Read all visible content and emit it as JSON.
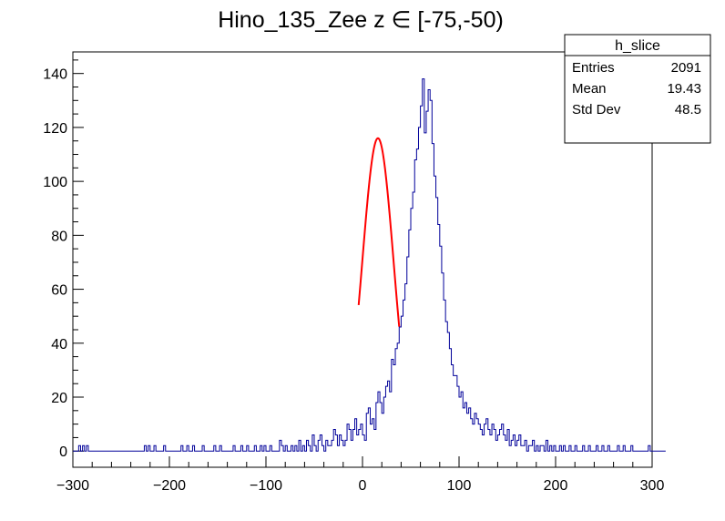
{
  "chart_data": {
    "type": "histogram",
    "title": "Hino_135_Zee z  ∈ [-75,-50)",
    "xlabel": "",
    "ylabel": "",
    "xlim": [
      -300,
      300
    ],
    "ylim": [
      -6,
      148
    ],
    "x_ticks": [
      -300,
      -200,
      -100,
      0,
      100,
      200,
      300
    ],
    "y_ticks": [
      0,
      20,
      40,
      60,
      80,
      100,
      120,
      140
    ],
    "grid": false,
    "histogram": {
      "name": "h_slice",
      "color": "#000099",
      "bin_width": 2,
      "x_start": -300,
      "counts": [
        0,
        0,
        0,
        2,
        0,
        2,
        0,
        2,
        0,
        0,
        0,
        0,
        0,
        0,
        0,
        0,
        0,
        0,
        0,
        0,
        0,
        0,
        0,
        0,
        0,
        0,
        0,
        0,
        0,
        0,
        0,
        0,
        0,
        0,
        0,
        0,
        0,
        2,
        0,
        2,
        0,
        0,
        2,
        0,
        0,
        0,
        0,
        2,
        0,
        0,
        0,
        0,
        0,
        0,
        0,
        0,
        2,
        0,
        0,
        2,
        0,
        0,
        2,
        0,
        0,
        0,
        0,
        2,
        0,
        0,
        0,
        0,
        0,
        2,
        0,
        0,
        2,
        0,
        0,
        0,
        0,
        0,
        0,
        2,
        0,
        0,
        0,
        2,
        0,
        0,
        2,
        0,
        0,
        0,
        2,
        0,
        0,
        2,
        0,
        2,
        0,
        0,
        2,
        0,
        0,
        0,
        0,
        4,
        2,
        0,
        2,
        0,
        0,
        2,
        0,
        2,
        0,
        4,
        0,
        2,
        0,
        4,
        2,
        0,
        6,
        2,
        0,
        4,
        6,
        2,
        0,
        4,
        2,
        2,
        4,
        8,
        6,
        2,
        6,
        4,
        2,
        4,
        10,
        8,
        4,
        8,
        12,
        6,
        8,
        10,
        6,
        4,
        14,
        16,
        10,
        12,
        8,
        18,
        22,
        18,
        14,
        20,
        24,
        26,
        22,
        34,
        32,
        38,
        40,
        46,
        50,
        56,
        62,
        72,
        82,
        90,
        96,
        108,
        112,
        120,
        128,
        138,
        118,
        126,
        134,
        130,
        114,
        102,
        94,
        84,
        76,
        66,
        56,
        48,
        44,
        38,
        32,
        28,
        28,
        24,
        20,
        22,
        16,
        18,
        14,
        16,
        12,
        10,
        14,
        12,
        10,
        8,
        6,
        10,
        12,
        8,
        6,
        10,
        8,
        4,
        6,
        8,
        10,
        6,
        4,
        8,
        2,
        4,
        6,
        2,
        4,
        6,
        2,
        2,
        4,
        0,
        2,
        2,
        4,
        0,
        2,
        0,
        2,
        2,
        0,
        4,
        0,
        2,
        0,
        2,
        0,
        0,
        2,
        0,
        2,
        0,
        0,
        2,
        0,
        0,
        2,
        0,
        0,
        0,
        2,
        0,
        0,
        2,
        0,
        0,
        0,
        2,
        0,
        0,
        2,
        0,
        0,
        2,
        0,
        0,
        0,
        0,
        2,
        0,
        0,
        2,
        0,
        0,
        0,
        2,
        0,
        0,
        0,
        0,
        0,
        0,
        0,
        0,
        2,
        0,
        0,
        0,
        0,
        0,
        0,
        0,
        0
      ]
    },
    "fit": {
      "type": "gaussian",
      "color": "#ff0000",
      "amplitude": 116,
      "mean": 16,
      "sigma": 16.2,
      "x_range": [
        -4,
        38
      ]
    },
    "legend_placement": "top-right"
  },
  "stats_box": {
    "title": "h_slice",
    "rows": [
      {
        "label": "Entries",
        "value": "2091"
      },
      {
        "label": "Mean",
        "value": "19.43"
      },
      {
        "label": "Std Dev",
        "value": "48.5"
      }
    ]
  }
}
